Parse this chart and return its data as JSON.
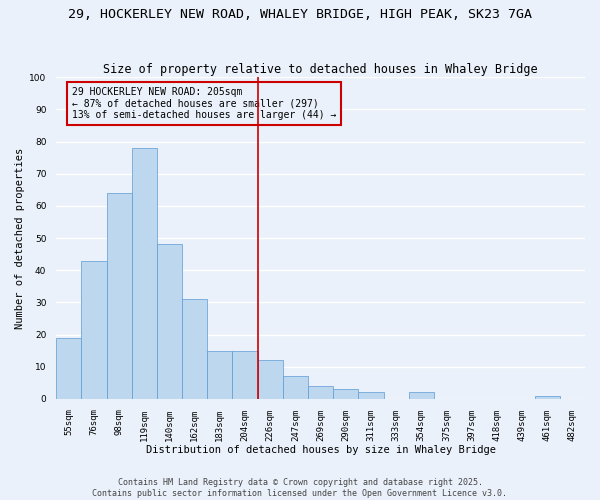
{
  "title1": "29, HOCKERLEY NEW ROAD, WHALEY BRIDGE, HIGH PEAK, SK23 7GA",
  "title2": "Size of property relative to detached houses in Whaley Bridge",
  "xlabel": "Distribution of detached houses by size in Whaley Bridge",
  "ylabel": "Number of detached properties",
  "categories": [
    "55sqm",
    "76sqm",
    "98sqm",
    "119sqm",
    "140sqm",
    "162sqm",
    "183sqm",
    "204sqm",
    "226sqm",
    "247sqm",
    "269sqm",
    "290sqm",
    "311sqm",
    "333sqm",
    "354sqm",
    "375sqm",
    "397sqm",
    "418sqm",
    "439sqm",
    "461sqm",
    "482sqm"
  ],
  "values": [
    19,
    43,
    64,
    78,
    48,
    31,
    15,
    15,
    12,
    7,
    4,
    3,
    2,
    0,
    2,
    0,
    0,
    0,
    0,
    1,
    0
  ],
  "bar_color": "#bdd7ee",
  "bar_edge_color": "#5b9bd5",
  "bg_color": "#eaf1fa",
  "grid_color": "#ffffff",
  "vline_x": 7.5,
  "vline_color": "#cc0000",
  "annotation_text": "29 HOCKERLEY NEW ROAD: 205sqm\n← 87% of detached houses are smaller (297)\n13% of semi-detached houses are larger (44) →",
  "annotation_box_color": "#cc0000",
  "ylim": [
    0,
    100
  ],
  "yticks": [
    0,
    10,
    20,
    30,
    40,
    50,
    60,
    70,
    80,
    90,
    100
  ],
  "footer": "Contains HM Land Registry data © Crown copyright and database right 2025.\nContains public sector information licensed under the Open Government Licence v3.0.",
  "title_fontsize": 9.5,
  "subtitle_fontsize": 8.5,
  "axis_label_fontsize": 7.5,
  "tick_fontsize": 6.5,
  "annotation_fontsize": 7.0,
  "footer_fontsize": 6.0
}
